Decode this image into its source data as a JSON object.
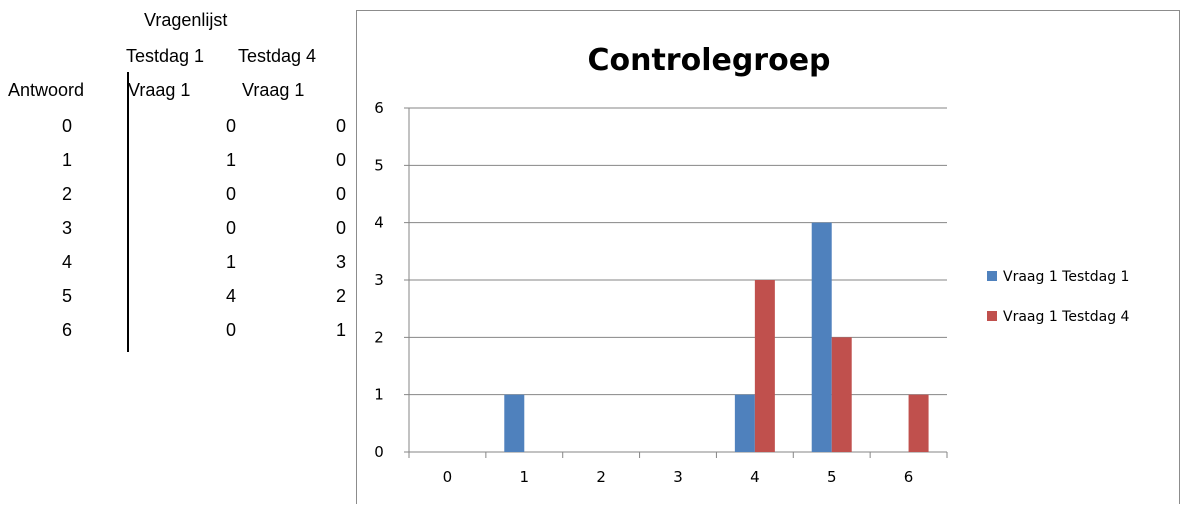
{
  "table": {
    "header_group": "Vragenlijst",
    "col1_header": "Testdag 1",
    "col2_header": "Testdag 4",
    "row_header": "Antwoord",
    "col1_sub": "Vraag 1",
    "col2_sub": "Vraag 1",
    "rows": [
      {
        "antwoord": "0",
        "t1": "0",
        "t4": "0"
      },
      {
        "antwoord": "1",
        "t1": "1",
        "t4": "0"
      },
      {
        "antwoord": "2",
        "t1": "0",
        "t4": "0"
      },
      {
        "antwoord": "3",
        "t1": "0",
        "t4": "0"
      },
      {
        "antwoord": "4",
        "t1": "1",
        "t4": "3"
      },
      {
        "antwoord": "5",
        "t1": "4",
        "t4": "2"
      },
      {
        "antwoord": "6",
        "t1": "0",
        "t4": "1"
      }
    ]
  },
  "chart_data": {
    "type": "bar",
    "title": "Controlegroep",
    "categories": [
      "0",
      "1",
      "2",
      "3",
      "4",
      "5",
      "6"
    ],
    "series": [
      {
        "name": "Vraag 1 Testdag 1",
        "values": [
          0,
          1,
          0,
          0,
          1,
          4,
          0
        ],
        "color": "#4f81bd"
      },
      {
        "name": "Vraag 1 Testdag 4",
        "values": [
          0,
          0,
          0,
          0,
          3,
          2,
          1
        ],
        "color": "#c0504d"
      }
    ],
    "ylim": [
      0,
      6
    ],
    "yticks": [
      "0",
      "1",
      "2",
      "3",
      "4",
      "5",
      "6"
    ],
    "grid": true,
    "legend_position": "right"
  }
}
